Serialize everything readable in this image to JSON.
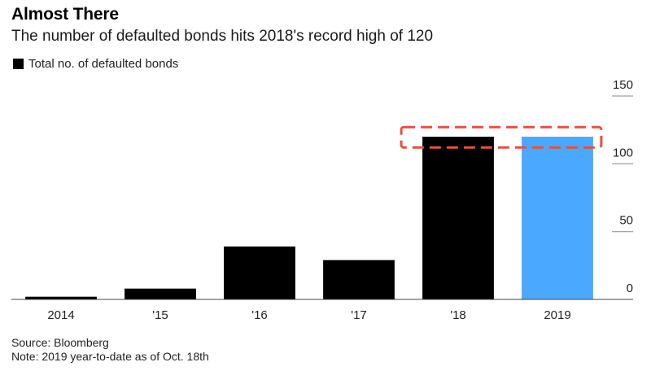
{
  "header": {
    "title": "Almost There",
    "subtitle": "The number of defaulted bonds hits 2018's record high of 120"
  },
  "legend": {
    "label": "Total no. of defaulted bonds",
    "color": "#000000"
  },
  "footer": {
    "source": "Source: Bloomberg",
    "note": "Note: 2019 year-to-date as of Oct. 18th"
  },
  "chart_data": {
    "type": "bar",
    "categories": [
      "2014",
      "'15",
      "'16",
      "'17",
      "'18",
      "2019"
    ],
    "series": [
      {
        "name": "Total no. of defaulted bonds",
        "values": [
          2,
          8,
          39,
          29,
          120,
          120
        ],
        "colors": [
          "#000000",
          "#000000",
          "#000000",
          "#000000",
          "#000000",
          "#4aa8ff"
        ]
      }
    ],
    "ylim": [
      0,
      150
    ],
    "yticks": [
      0,
      50,
      100,
      150
    ],
    "y_axis_side": "right",
    "grid": false,
    "legend_position": "top-left",
    "annotation": {
      "type": "dashed-box",
      "color": "#e8503a",
      "covers_categories": [
        "'18",
        "2019"
      ],
      "y_range": [
        112,
        127
      ]
    }
  }
}
